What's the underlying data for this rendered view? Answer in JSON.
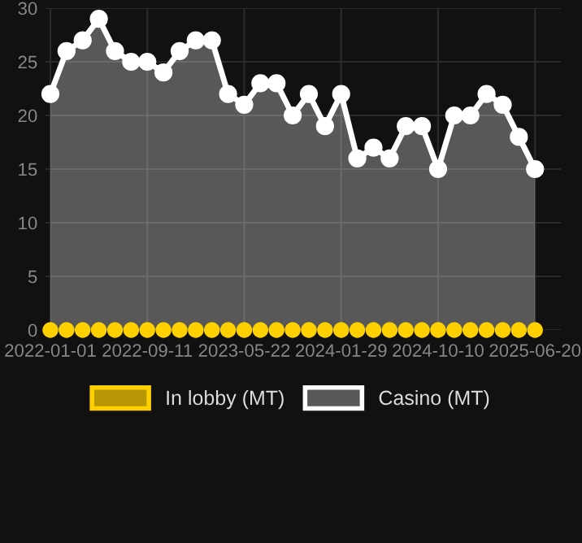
{
  "chart_data": {
    "type": "area",
    "categories": [
      "2022-01-01",
      null,
      null,
      null,
      null,
      null,
      "2022-09-11",
      null,
      null,
      null,
      null,
      null,
      "2023-05-22",
      null,
      null,
      null,
      null,
      null,
      "2024-01-29",
      null,
      null,
      null,
      null,
      null,
      "2024-10-10",
      null,
      null,
      null,
      null,
      null,
      "2025-06-20"
    ],
    "series": [
      {
        "name": "In lobby (MT)",
        "type": "scatter",
        "color": "#ffd000",
        "values": [
          0,
          0,
          0,
          0,
          0,
          0,
          0,
          0,
          0,
          0,
          0,
          0,
          0,
          0,
          0,
          0,
          0,
          0,
          0,
          0,
          0,
          0,
          0,
          0,
          0,
          0,
          0,
          0,
          0,
          0,
          0
        ]
      },
      {
        "name": "Casino (MT)",
        "color": "#ffffff",
        "values": [
          22,
          26,
          27,
          29,
          26,
          25,
          25,
          24,
          26,
          27,
          27,
          22,
          21,
          23,
          23,
          20,
          22,
          19,
          22,
          16,
          17,
          16,
          19,
          19,
          15,
          20,
          20,
          22,
          21,
          18,
          15
        ]
      }
    ],
    "ylim": [
      0,
      30
    ],
    "yticks": [
      0,
      5,
      10,
      15,
      20,
      25,
      30
    ],
    "grid": true,
    "legend": "bottom",
    "marker": "circle"
  }
}
